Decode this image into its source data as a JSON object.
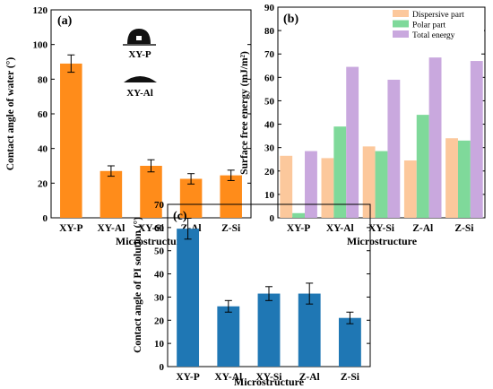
{
  "chart_data": [
    {
      "type": "bar",
      "panel_label": "(a)",
      "categories": [
        "XY-P",
        "XY-Al",
        "XY-Si",
        "Z-Al",
        "Z-Si"
      ],
      "values": [
        89,
        27,
        30,
        22.5,
        24.5
      ],
      "errors": [
        5,
        3,
        3.5,
        3,
        3
      ],
      "ylabel": "Contact angle of water (°)",
      "xlabel": "Microstructure",
      "ylim": [
        0,
        120
      ],
      "yticks": [
        0,
        20,
        40,
        60,
        80,
        100,
        120
      ],
      "color": "#ff8c1a",
      "insets": [
        {
          "label": "XY-P",
          "icon": "droplet-icon"
        },
        {
          "label": "XY-Al",
          "icon": "flat-droplet-icon"
        }
      ]
    },
    {
      "type": "bar",
      "panel_label": "(b)",
      "categories": [
        "XY-P",
        "XY-Al",
        "XY-Si",
        "Z-Al",
        "Z-Si"
      ],
      "series": [
        {
          "name": "Dispersive part",
          "values": [
            26.5,
            25.5,
            30.5,
            24.5,
            34
          ],
          "color": "#fcc89c"
        },
        {
          "name": "Polar part",
          "values": [
            2,
            39,
            28.5,
            44,
            33
          ],
          "color": "#7fd99a"
        },
        {
          "name": "Total energy",
          "values": [
            28.5,
            64.5,
            59,
            68.5,
            67
          ],
          "color": "#c9a8de"
        }
      ],
      "ylabel": "Surface free energy (mJ/m²)",
      "xlabel": "Microstructure",
      "ylim": [
        0,
        90
      ],
      "yticks": [
        0,
        10,
        20,
        30,
        40,
        50,
        60,
        70,
        80,
        90
      ],
      "legend": "top-right"
    },
    {
      "type": "bar",
      "panel_label": "(c)",
      "categories": [
        "XY-P",
        "XY-Al",
        "XY-Si",
        "Z-Al",
        "Z-Si"
      ],
      "values": [
        59.5,
        26,
        31.5,
        31.5,
        21
      ],
      "errors": [
        4.5,
        2.5,
        3,
        4.5,
        2.5
      ],
      "ylabel": "Contact angle of PI solution (°)",
      "xlabel": "Microstructure",
      "ylim": [
        0,
        70
      ],
      "yticks": [
        0,
        10,
        20,
        30,
        40,
        50,
        60,
        70
      ],
      "color": "#1f77b4"
    }
  ]
}
